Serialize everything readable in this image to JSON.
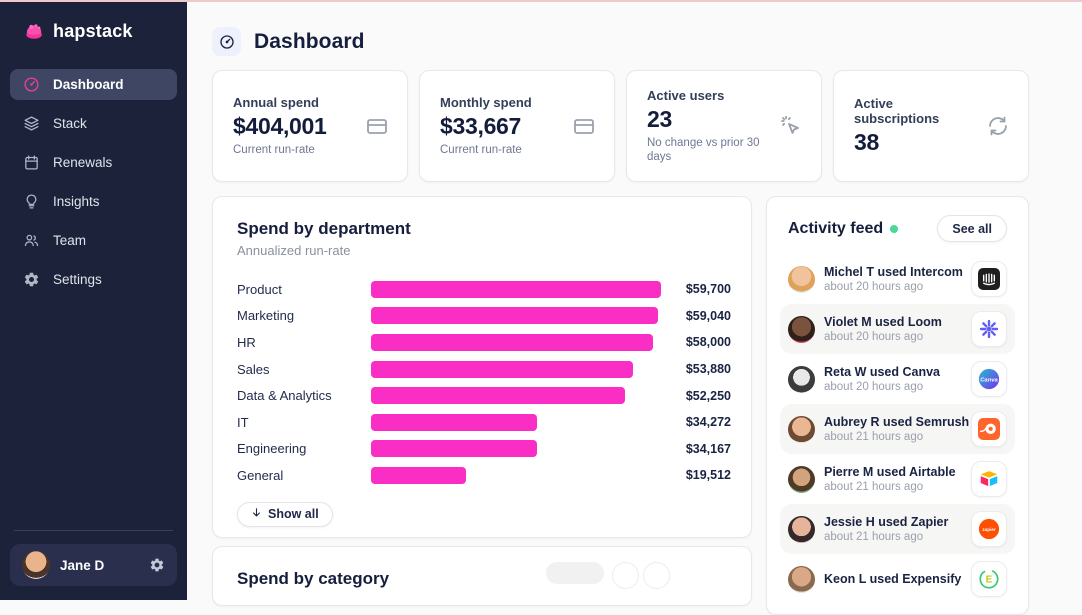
{
  "colors": {
    "brand_pink": "#f6339a",
    "bar_pink": "#fa2dc4",
    "status_green": "#4ad896",
    "sidebar_bg": "#1c2239",
    "topline_pink": "#edc9cc"
  },
  "brand": {
    "name": "hapstack"
  },
  "sidebar": {
    "items": [
      {
        "label": "Dashboard",
        "icon": "gauge-icon",
        "active": true
      },
      {
        "label": "Stack",
        "icon": "layers-icon",
        "active": false
      },
      {
        "label": "Renewals",
        "icon": "calendar-icon",
        "active": false
      },
      {
        "label": "Insights",
        "icon": "lightbulb-icon",
        "active": false
      },
      {
        "label": "Team",
        "icon": "people-icon",
        "active": false
      },
      {
        "label": "Settings",
        "icon": "gear-icon",
        "active": false
      }
    ],
    "user": {
      "name": "Jane D"
    }
  },
  "header": {
    "title": "Dashboard"
  },
  "stats": [
    {
      "label": "Annual spend",
      "value": "$404,001",
      "sub": "Current run-rate",
      "icon": "credit-card-icon"
    },
    {
      "label": "Monthly spend",
      "value": "$33,667",
      "sub": "Current run-rate",
      "icon": "credit-card-icon"
    },
    {
      "label": "Active users",
      "value": "23",
      "sub": "No change vs prior 30 days",
      "icon": "cursor-click-icon"
    },
    {
      "label": "Active subscriptions",
      "value": "38",
      "sub": "",
      "icon": "refresh-icon"
    }
  ],
  "chart_data": {
    "type": "bar",
    "orientation": "horizontal",
    "title": "Spend by department",
    "subtitle": "Annualized run-rate",
    "categories": [
      "Product",
      "Marketing",
      "HR",
      "Sales",
      "Data & Analytics",
      "IT",
      "Engineering",
      "General"
    ],
    "values": [
      59700,
      59040,
      58000,
      53880,
      52250,
      34272,
      34167,
      19512
    ],
    "value_labels": [
      "$59,700",
      "$59,040",
      "$58,000",
      "$53,880",
      "$52,250",
      "$34,272",
      "$34,167",
      "$19,512"
    ],
    "xlim": [
      0,
      59700
    ],
    "bar_color": "#fa2dc4",
    "grid": false,
    "show_all_label": "Show all"
  },
  "bottom_card": {
    "title": "Spend by category"
  },
  "activity": {
    "title": "Activity feed",
    "see_all_label": "See all",
    "items": [
      {
        "text": "Michel T used Intercom",
        "app": "Intercom",
        "time": "about 20 hours ago"
      },
      {
        "text": "Violet M used Loom",
        "app": "Loom",
        "time": "about 20 hours ago"
      },
      {
        "text": "Reta W used Canva",
        "app": "Canva",
        "time": "about 20 hours ago"
      },
      {
        "text": "Aubrey R used Semrush",
        "app": "Semrush",
        "time": "about 21 hours ago"
      },
      {
        "text": "Pierre M used Airtable",
        "app": "Airtable",
        "time": "about 21 hours ago"
      },
      {
        "text": "Jessie H used Zapier",
        "app": "Zapier",
        "time": "about 21 hours ago"
      },
      {
        "text": "Keon L used Expensify",
        "app": "Expensify",
        "time": ""
      }
    ]
  }
}
